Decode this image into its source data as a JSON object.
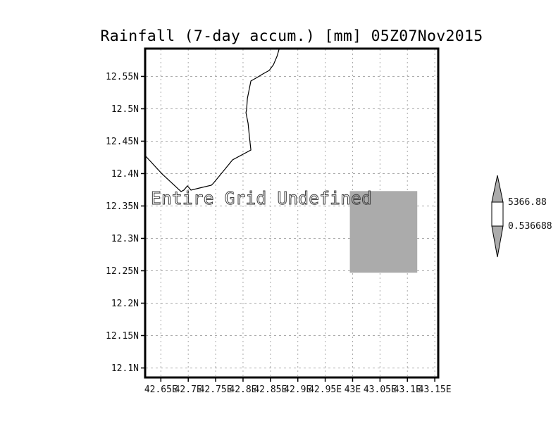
{
  "title": "Rainfall (7-day accum.) [mm] 05Z07Nov2015",
  "colors": {
    "background": "#ffffff",
    "frame": "#000000",
    "grid": "#aaaaaa",
    "coastline": "#000000",
    "text": "#000000",
    "tick_text": "#111111",
    "annotation_stroke": "#3f3f3f",
    "undefined_gray": "#ababab",
    "colorbar_band": "#ffffff"
  },
  "chart_data": {
    "type": "map",
    "title": "Rainfall (7-day accum.) [mm] 05Z07Nov2015",
    "annotation": "Entire Grid Undefined",
    "grid": true,
    "x_axis": {
      "range": [
        42.6226,
        43.155
      ],
      "tick_values": [
        42.65,
        42.7,
        42.75,
        42.8,
        42.85,
        42.9,
        42.95,
        43.0,
        43.05,
        43.1,
        43.15
      ],
      "tick_labels": [
        "42.65E",
        "42.7E",
        "42.75E",
        "42.8E",
        "42.85E",
        "42.9E",
        "42.95E",
        "43E",
        "43.05E",
        "43.1E",
        "43.15E"
      ]
    },
    "y_axis": {
      "range": [
        12.0864,
        12.5918
      ],
      "tick_values": [
        12.55,
        12.5,
        12.45,
        12.4,
        12.35,
        12.3,
        12.25,
        12.2,
        12.15,
        12.1
      ],
      "tick_labels": [
        "12.55N",
        "12.5N",
        "12.45N",
        "12.4N",
        "12.35N",
        "12.3N",
        "12.25N",
        "12.2N",
        "12.15N",
        "12.1N"
      ]
    },
    "undefined_region_box": {
      "lon_range": [
        42.995,
        43.118
      ],
      "lat_range": [
        12.247,
        12.373
      ]
    },
    "coastline_lonlat": [
      [
        42.8658,
        12.5919
      ],
      [
        42.862,
        12.581
      ],
      [
        42.8555,
        12.5679
      ],
      [
        42.8478,
        12.5592
      ],
      [
        42.8362,
        12.5538
      ],
      [
        42.8259,
        12.5484
      ],
      [
        42.8143,
        12.5429
      ],
      [
        42.8079,
        12.5158
      ],
      [
        42.8066,
        12.4995
      ],
      [
        42.8053,
        12.494
      ],
      [
        42.8092,
        12.4777
      ],
      [
        42.8118,
        12.456
      ],
      [
        42.8143,
        12.4364
      ],
      [
        42.7809,
        12.4212
      ],
      [
        42.7641,
        12.4038
      ],
      [
        42.7461,
        12.3853
      ],
      [
        42.7423,
        12.3821
      ],
      [
        42.7204,
        12.3777
      ],
      [
        42.705,
        12.3745
      ],
      [
        42.6985,
        12.381
      ],
      [
        42.6921,
        12.3745
      ],
      [
        42.6869,
        12.3723
      ],
      [
        42.6522,
        12.3995
      ],
      [
        42.6226,
        12.4266
      ]
    ],
    "colorbar": {
      "orientation": "vertical",
      "max_value": 5366.88,
      "min_value": 0.536688,
      "max_label": "5366.88",
      "min_label": "0.536688"
    }
  }
}
